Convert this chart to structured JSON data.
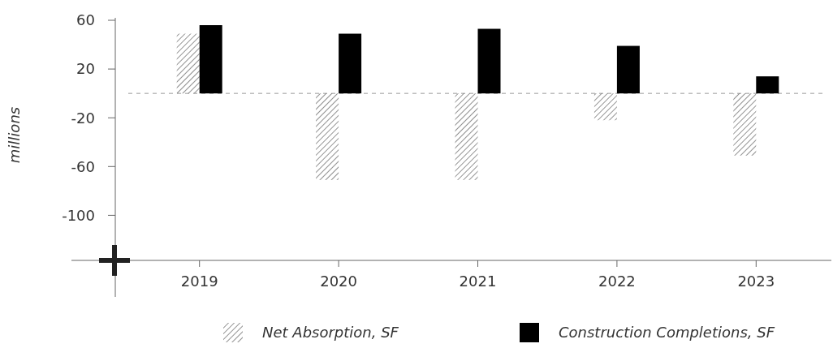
{
  "chart_data": {
    "type": "bar",
    "ylabel": "millions",
    "categories": [
      "2019",
      "2020",
      "2021",
      "2022",
      "2023"
    ],
    "series": [
      {
        "name": "Net Absorption, SF",
        "color": "#555555",
        "values": [
          49,
          -71,
          -71,
          -22,
          -51
        ]
      },
      {
        "name": "Construction Completions, SF",
        "color": "#000000",
        "values": [
          56,
          49,
          53,
          39,
          14
        ]
      }
    ],
    "ylim": [
      -137,
      62
    ],
    "yticks": [
      -100,
      -60,
      -20,
      20,
      60
    ],
    "grid": false,
    "legend": "bottom",
    "ref_lines": [
      {
        "axis": "y",
        "value": 0,
        "color": "#999999",
        "line_style": "dashed"
      }
    ]
  }
}
